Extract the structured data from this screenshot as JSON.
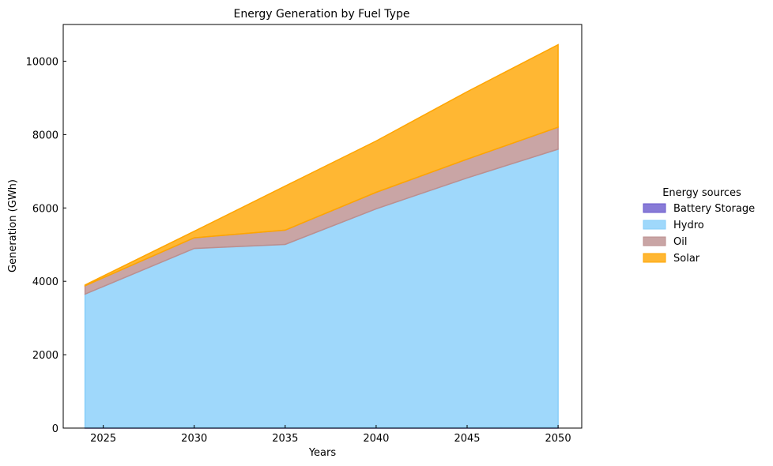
{
  "chart_data": {
    "type": "area",
    "stacked": true,
    "title": "Energy Generation by Fuel Type",
    "xlabel": "Years",
    "ylabel": "Generation (GWh)",
    "x": [
      2024,
      2030,
      2035,
      2040,
      2045,
      2050
    ],
    "xlim": [
      2022.8,
      2051.3
    ],
    "ylim": [
      0,
      11000
    ],
    "xticks": [
      2025,
      2030,
      2035,
      2040,
      2045,
      2050
    ],
    "yticks": [
      0,
      2000,
      4000,
      6000,
      8000,
      10000
    ],
    "grid": false,
    "legend": {
      "title": "Energy sources",
      "placement": "outside-right"
    },
    "series": [
      {
        "name": "Battery Storage",
        "color": "#6a5acd",
        "values": [
          10,
          15,
          15,
          15,
          18,
          20
        ]
      },
      {
        "name": "Hydro",
        "color": "#87cefa",
        "values": [
          3640,
          4880,
          4990,
          5960,
          6800,
          7580
        ]
      },
      {
        "name": "Oil",
        "color": "#bc8f8f",
        "values": [
          230,
          290,
          390,
          450,
          510,
          600
        ]
      },
      {
        "name": "Solar",
        "color": "#ffa500",
        "values": [
          20,
          180,
          1200,
          1400,
          1840,
          2250
        ]
      }
    ]
  }
}
